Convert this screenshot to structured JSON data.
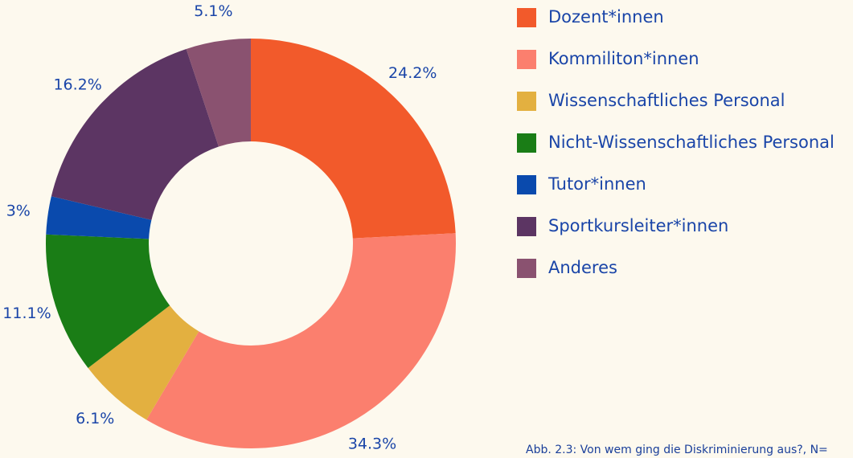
{
  "chart_data": {
    "type": "pie",
    "categories": [
      "Dozent*innen",
      "Kommiliton*innen",
      "Wissenschaftliches Personal",
      "Nicht-Wissenschaftliches Personal",
      "Tutor*innen",
      "Sportkursleiter*innen",
      "Anderes"
    ],
    "values": [
      24.2,
      34.3,
      6.1,
      11.1,
      3,
      16.2,
      5.1
    ],
    "value_labels": [
      "24.2%",
      "34.3%",
      "6.1%",
      "11.1%",
      "3%",
      "16.2%",
      "5.1%"
    ],
    "colors": [
      "#f25a2b",
      "#fb7f6e",
      "#e3b040",
      "#1a7d16",
      "#0a4aad",
      "#5c3563",
      "#8a5270"
    ],
    "caption": "Abb. 2.3: Von wem ging die Diskriminierung aus?, N="
  }
}
